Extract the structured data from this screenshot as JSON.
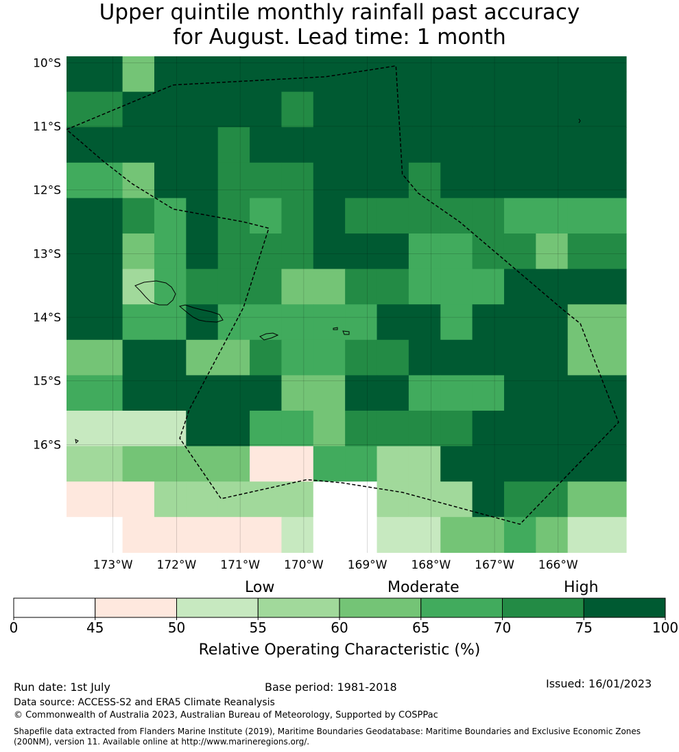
{
  "title": {
    "line1": "Upper quintile monthly rainfall past accuracy",
    "line2": "for August. Lead time: 1 month"
  },
  "map": {
    "lat_labels": [
      "10°S",
      "11°S",
      "12°S",
      "13°S",
      "14°S",
      "15°S",
      "16°S"
    ],
    "lon_labels": [
      "173°W",
      "172°W",
      "171°W",
      "170°W",
      "169°W",
      "168°W",
      "167°W",
      "166°W"
    ],
    "grid_colors": [
      "#ffffff",
      "#fee8de",
      "#c7e9c0",
      "#a1d99b",
      "#74c476",
      "#41ab5d",
      "#238b45",
      "#005a32"
    ],
    "grid": [
      [
        7,
        4,
        7,
        7,
        7,
        7,
        7,
        7,
        7,
        7,
        7,
        7,
        7,
        7,
        7,
        7
      ],
      [
        6,
        7,
        7,
        7,
        7,
        7,
        6,
        7,
        7,
        7,
        7,
        7,
        7,
        7,
        7,
        7
      ],
      [
        7,
        7,
        7,
        7,
        6,
        7,
        7,
        7,
        7,
        7,
        7,
        7,
        7,
        7,
        7,
        7
      ],
      [
        5,
        4,
        7,
        7,
        6,
        6,
        6,
        7,
        7,
        7,
        6,
        7,
        7,
        7,
        7,
        7
      ],
      [
        7,
        6,
        5,
        7,
        6,
        5,
        6,
        7,
        6,
        6,
        6,
        6,
        6,
        5,
        5,
        5
      ],
      [
        7,
        4,
        5,
        7,
        6,
        6,
        6,
        7,
        7,
        7,
        5,
        5,
        6,
        6,
        4,
        6
      ],
      [
        7,
        3,
        5,
        6,
        6,
        6,
        4,
        4,
        6,
        6,
        5,
        5,
        5,
        7,
        7,
        7
      ],
      [
        7,
        5,
        5,
        7,
        5,
        5,
        5,
        5,
        5,
        7,
        7,
        5,
        7,
        7,
        7,
        4
      ],
      [
        4,
        7,
        7,
        4,
        4,
        6,
        5,
        5,
        6,
        6,
        7,
        7,
        7,
        7,
        7,
        4
      ],
      [
        5,
        7,
        7,
        7,
        7,
        7,
        4,
        4,
        7,
        7,
        5,
        5,
        5,
        7,
        7,
        7
      ],
      [
        2,
        2,
        2,
        7,
        7,
        5,
        5,
        4,
        6,
        6,
        6,
        6,
        7,
        7,
        7,
        7
      ],
      [
        3,
        4,
        4,
        4,
        4,
        1,
        1,
        5,
        5,
        3,
        3,
        7,
        7,
        7,
        7,
        7
      ],
      [
        1,
        1,
        3,
        3,
        3,
        3,
        3,
        0,
        0,
        3,
        3,
        3,
        7,
        6,
        6,
        4
      ],
      [
        0,
        1,
        1,
        1,
        1,
        1,
        2,
        0,
        0,
        2,
        2,
        4,
        4,
        5,
        4,
        2
      ]
    ],
    "eez_boundary": [
      [
        -173.73,
        -11.05
      ],
      [
        -172.05,
        -10.35
      ],
      [
        -169.65,
        -10.22
      ],
      [
        -168.55,
        -10.05
      ],
      [
        -168.45,
        -11.75
      ],
      [
        -168.2,
        -12.05
      ],
      [
        -167.55,
        -12.5
      ],
      [
        -165.9,
        -13.9
      ],
      [
        -165.65,
        -14.1
      ],
      [
        -165.05,
        -15.65
      ],
      [
        -166.6,
        -17.25
      ],
      [
        -168.45,
        -16.75
      ],
      [
        -169.4,
        -16.6
      ],
      [
        -169.95,
        -16.55
      ],
      [
        -171.3,
        -16.85
      ],
      [
        -171.95,
        -15.9
      ],
      [
        -171.8,
        -15.45
      ],
      [
        -170.95,
        -13.85
      ],
      [
        -170.55,
        -12.6
      ],
      [
        -170.95,
        -12.5
      ],
      [
        -172.05,
        -12.3
      ],
      [
        -172.7,
        -11.9
      ],
      [
        -173.15,
        -11.55
      ],
      [
        -173.73,
        -11.05
      ]
    ]
  },
  "colorbar": {
    "categories": [
      "Low",
      "Moderate",
      "High"
    ],
    "ticks": [
      "0",
      "45",
      "50",
      "55",
      "60",
      "65",
      "70",
      "75",
      "100"
    ],
    "colors": [
      "#ffffff",
      "#fee8de",
      "#c7e9c0",
      "#a1d99b",
      "#74c476",
      "#41ab5d",
      "#238b45",
      "#005a32"
    ],
    "label": "Relative Operating Characteristic (%)"
  },
  "footer": {
    "run_date": "Run date: 1st July",
    "base_period": "Base period: 1981-2018",
    "issued": "Issued: 16/01/2023",
    "data_source": "Data source: ACCESS-S2 and ERA5 Climate Reanalysis",
    "copyright": "© Commonwealth of Australia 2023, Australian Bureau of Meteorology, Supported by COSPPac",
    "shapefile": "Shapefile data extracted from Flanders Marine Institute (2019), Maritime Boundaries Geodatabase: Maritime Boundaries and Exclusive Economic Zones (200NM), version 11. Available online at http://www.marineregions.org/."
  }
}
